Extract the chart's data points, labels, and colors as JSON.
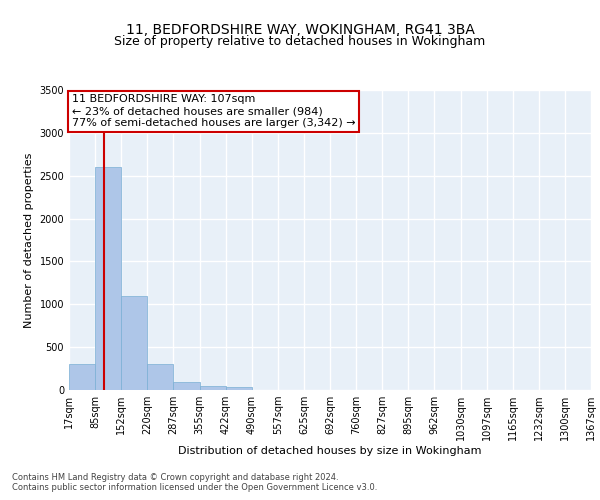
{
  "title": "11, BEDFORDSHIRE WAY, WOKINGHAM, RG41 3BA",
  "subtitle": "Size of property relative to detached houses in Wokingham",
  "xlabel": "Distribution of detached houses by size in Wokingham",
  "ylabel": "Number of detached properties",
  "bin_labels": [
    "17sqm",
    "85sqm",
    "152sqm",
    "220sqm",
    "287sqm",
    "355sqm",
    "422sqm",
    "490sqm",
    "557sqm",
    "625sqm",
    "692sqm",
    "760sqm",
    "827sqm",
    "895sqm",
    "962sqm",
    "1030sqm",
    "1097sqm",
    "1165sqm",
    "1232sqm",
    "1300sqm",
    "1367sqm"
  ],
  "bin_starts": [
    17,
    85,
    152,
    220,
    287,
    355,
    422,
    490,
    557,
    625,
    692,
    760,
    827,
    895,
    962,
    1030,
    1097,
    1165,
    1232,
    1300,
    1367
  ],
  "bar_values": [
    300,
    2600,
    1100,
    300,
    90,
    45,
    30,
    0,
    0,
    0,
    0,
    0,
    0,
    0,
    0,
    0,
    0,
    0,
    0,
    0
  ],
  "bar_color": "#aec6e8",
  "bar_edge_color": "#7aafd4",
  "bg_color": "#e8f0f8",
  "grid_color": "#ffffff",
  "property_sqm": 107,
  "property_line_color": "#cc0000",
  "annotation_line1": "11 BEDFORDSHIRE WAY: 107sqm",
  "annotation_line2": "← 23% of detached houses are smaller (984)",
  "annotation_line3": "77% of semi-detached houses are larger (3,342) →",
  "annotation_box_color": "#ffffff",
  "annotation_box_edge_color": "#cc0000",
  "ylim": [
    0,
    3500
  ],
  "yticks": [
    0,
    500,
    1000,
    1500,
    2000,
    2500,
    3000,
    3500
  ],
  "footnote1": "Contains HM Land Registry data © Crown copyright and database right 2024.",
  "footnote2": "Contains public sector information licensed under the Open Government Licence v3.0.",
  "title_fontsize": 10,
  "subtitle_fontsize": 9,
  "xlabel_fontsize": 8,
  "ylabel_fontsize": 8,
  "tick_fontsize": 7,
  "annotation_fontsize": 8,
  "footnote_fontsize": 6
}
